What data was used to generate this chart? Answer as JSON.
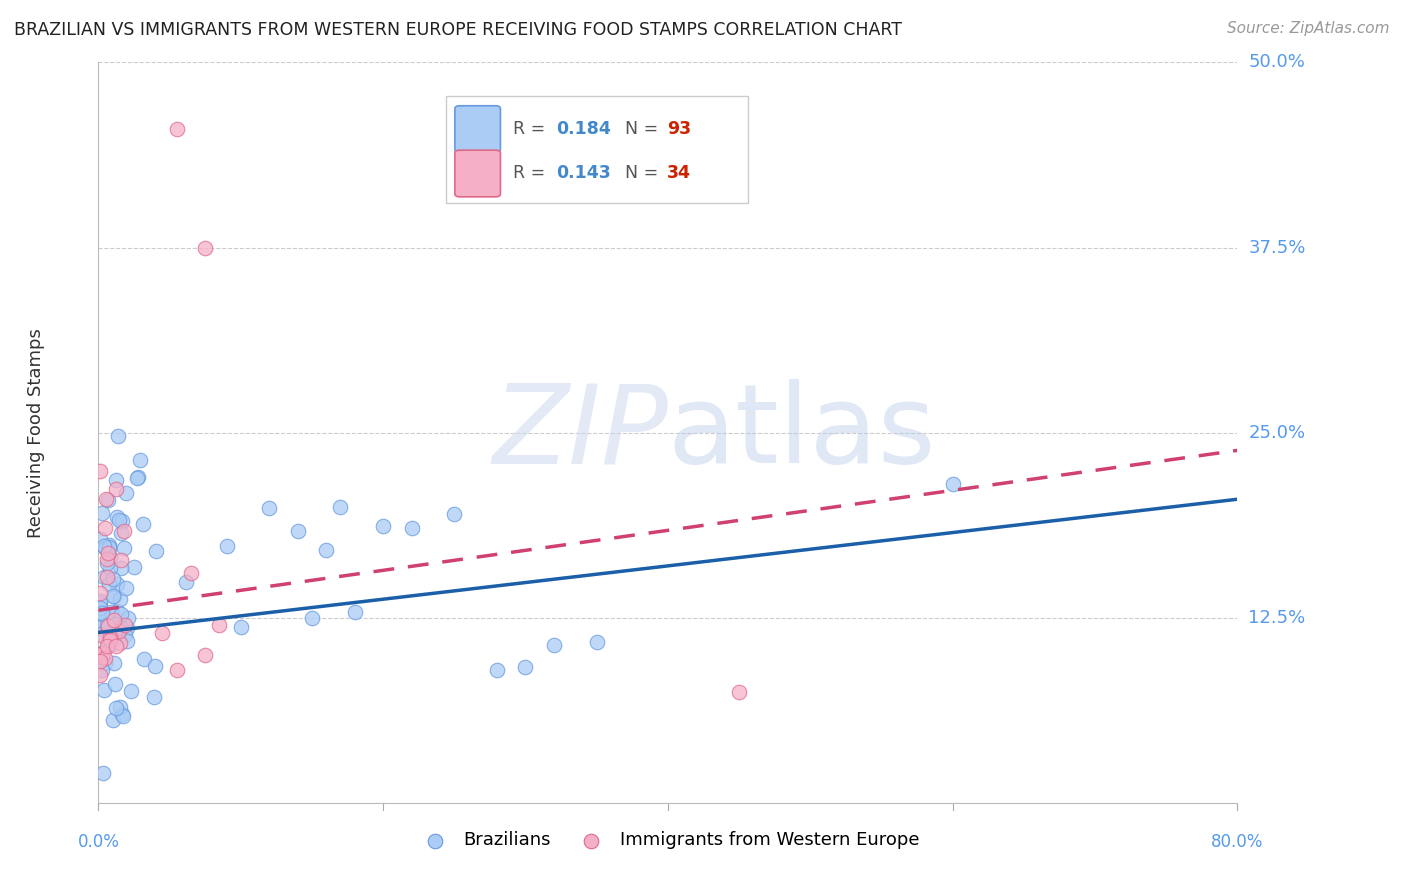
{
  "title": "BRAZILIAN VS IMMIGRANTS FROM WESTERN EUROPE RECEIVING FOOD STAMPS CORRELATION CHART",
  "source": "Source: ZipAtlas.com",
  "ylabel": "Receiving Food Stamps",
  "background_color": "#ffffff",
  "grid_color": "#cccccc",
  "xlim": [
    0.0,
    0.8
  ],
  "ylim": [
    0.0,
    0.5
  ],
  "ytick_positions": [
    0.0,
    0.125,
    0.25,
    0.375,
    0.5
  ],
  "right_ytick_labels": [
    "50.0%",
    "37.5%",
    "25.0%",
    "12.5%"
  ],
  "bottom_xtick_labels": [
    "0.0%",
    "80.0%"
  ],
  "braz_R": 0.184,
  "braz_N": 93,
  "imm_R": 0.143,
  "imm_N": 34,
  "braz_color_face": "#aaccf5",
  "braz_color_edge": "#6699dd",
  "imm_color_face": "#f5b0c8",
  "imm_color_edge": "#e06888",
  "blue_line_color": "#1a5fa8",
  "pink_line_color": "#d04070",
  "blue_line_start_y": 0.115,
  "blue_line_end_y": 0.205,
  "pink_line_start_y": 0.13,
  "pink_line_end_y": 0.238,
  "watermark_zip_color": "#c8d8f0",
  "watermark_atlas_color": "#c8d8f0",
  "right_label_color": "#5599ee",
  "title_color": "#222222",
  "source_color": "#999999",
  "ylabel_color": "#333333",
  "legend_R_color": "#4488cc",
  "legend_N_color": "#cc2200"
}
